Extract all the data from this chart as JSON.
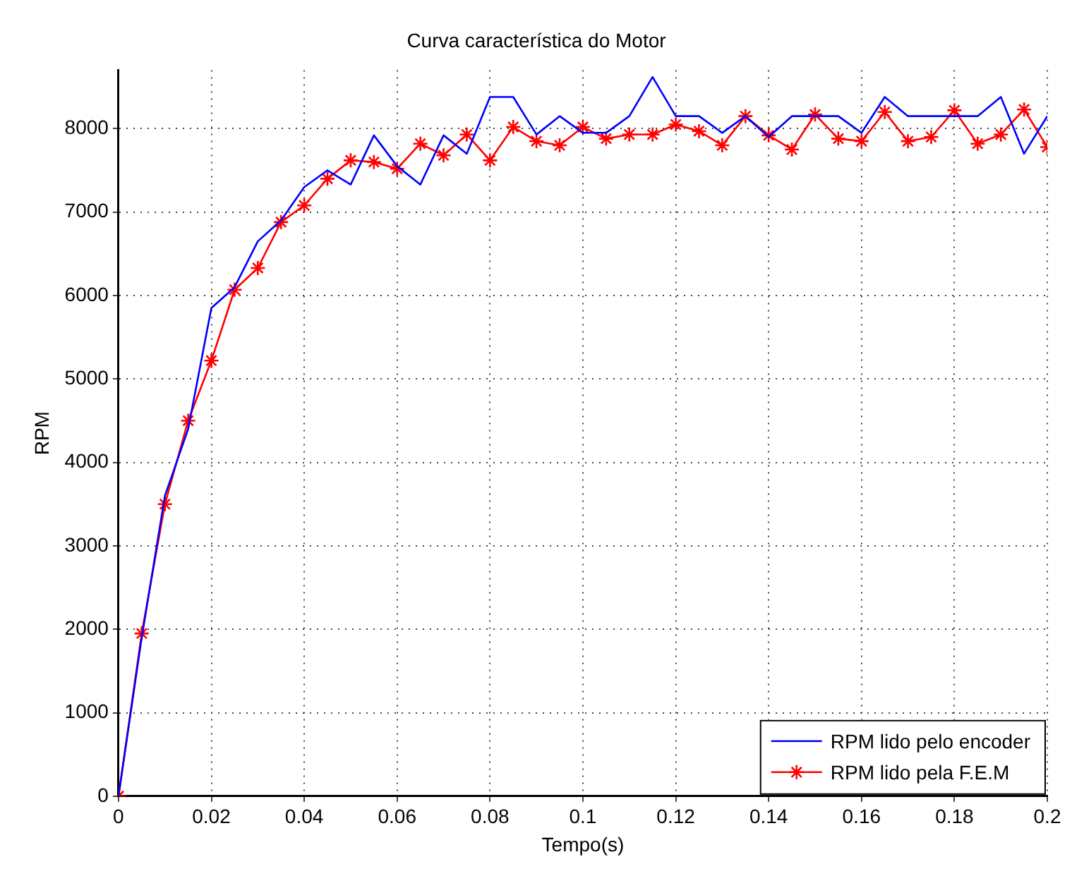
{
  "chart_data": {
    "type": "line",
    "title": "Curva característica do Motor",
    "xlabel": "Tempo(s)",
    "ylabel": "RPM",
    "x": [
      0,
      0.005,
      0.01,
      0.015,
      0.02,
      0.025,
      0.03,
      0.035,
      0.04,
      0.045,
      0.05,
      0.055,
      0.06,
      0.065,
      0.07,
      0.075,
      0.08,
      0.085,
      0.09,
      0.095,
      0.1,
      0.105,
      0.11,
      0.115,
      0.12,
      0.125,
      0.13,
      0.135,
      0.14,
      0.145,
      0.15,
      0.155,
      0.16,
      0.165,
      0.17,
      0.175,
      0.18,
      0.185,
      0.19,
      0.195,
      0.2
    ],
    "series": [
      {
        "name": "RPM lido pelo encoder",
        "color": "#0000ff",
        "marker": "none",
        "values": [
          0,
          1900,
          3600,
          4400,
          5850,
          6100,
          6650,
          6900,
          7300,
          7500,
          7330,
          7920,
          7550,
          7330,
          7920,
          7700,
          8380,
          8380,
          7930,
          8150,
          7950,
          7950,
          8150,
          8620,
          8150,
          8150,
          7950,
          8150,
          7900,
          8150,
          8150,
          8150,
          7950,
          8380,
          8150,
          8150,
          8150,
          8150,
          8380,
          7700,
          8150
        ]
      },
      {
        "name": "RPM lido pela F.E.M",
        "color": "#ff0000",
        "marker": "cross",
        "values": [
          0,
          1950,
          3500,
          4500,
          5220,
          6070,
          6330,
          6880,
          7080,
          7400,
          7620,
          7600,
          7520,
          7820,
          7680,
          7930,
          7620,
          8020,
          7850,
          7800,
          8020,
          7880,
          7930,
          7930,
          8050,
          7970,
          7800,
          8150,
          7920,
          7750,
          8170,
          7880,
          7850,
          8200,
          7850,
          7900,
          8220,
          7820,
          7930,
          8230,
          7780
        ]
      }
    ],
    "xlim": [
      0,
      0.2
    ],
    "xticks": [
      0,
      0.02,
      0.04,
      0.06,
      0.08,
      0.1,
      0.12,
      0.14,
      0.16,
      0.18,
      0.2
    ],
    "ylim": [
      0,
      8700
    ],
    "yticks": [
      0,
      1000,
      2000,
      3000,
      4000,
      5000,
      6000,
      7000,
      8000
    ],
    "grid": true,
    "legend": "bottom right",
    "line_style": "solid"
  }
}
